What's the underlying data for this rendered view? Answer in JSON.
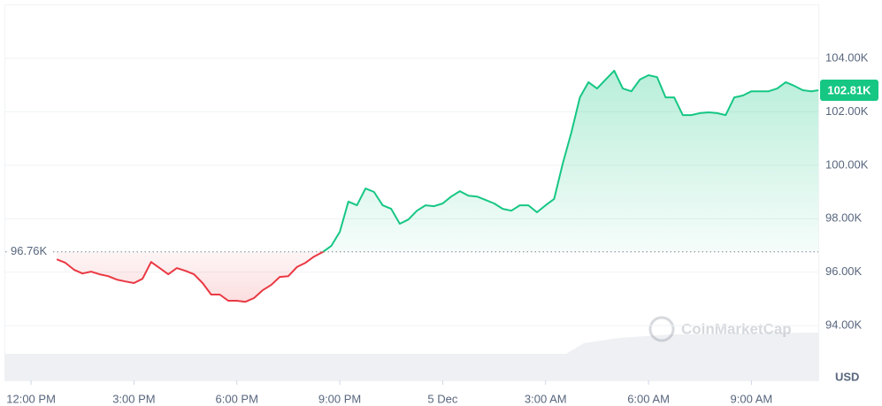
{
  "chart_data": {
    "type": "line",
    "x": [
      0.75,
      1,
      1.25,
      1.5,
      1.75,
      2,
      2.25,
      2.5,
      2.75,
      3,
      3.25,
      3.5,
      3.75,
      4,
      4.25,
      4.5,
      4.75,
      5,
      5.25,
      5.5,
      5.75,
      6,
      6.25,
      6.5,
      6.75,
      7,
      7.25,
      7.5,
      7.75,
      8,
      8.25,
      8.5,
      8.75,
      9,
      9.25,
      9.5,
      9.75,
      10,
      10.25,
      10.5,
      10.75,
      11,
      11.25,
      11.5,
      11.75,
      12,
      12.25,
      12.5,
      12.75,
      13,
      13.25,
      13.5,
      13.75,
      14,
      14.25,
      14.5,
      14.75,
      15,
      15.25,
      15.5,
      15.75,
      16,
      16.25,
      16.5,
      16.75,
      17,
      17.25,
      17.5,
      17.75,
      18,
      18.25,
      18.5,
      18.75,
      19,
      19.25,
      19.5,
      19.75,
      20,
      20.25,
      20.5,
      20.75,
      21,
      21.25,
      21.5,
      21.75,
      22,
      22.25,
      22.5,
      22.75,
      22.95
    ],
    "values": [
      96480,
      96350,
      96090,
      95950,
      96020,
      95920,
      95850,
      95720,
      95650,
      95590,
      95750,
      96380,
      96150,
      95920,
      96150,
      96050,
      95920,
      95590,
      95160,
      95160,
      94930,
      94930,
      94890,
      95030,
      95320,
      95520,
      95820,
      95850,
      96190,
      96350,
      96580,
      96750,
      96980,
      97510,
      98640,
      98500,
      99130,
      99000,
      98500,
      98370,
      97810,
      97970,
      98300,
      98500,
      98470,
      98570,
      98830,
      99030,
      98860,
      98830,
      98700,
      98570,
      98370,
      98300,
      98500,
      98500,
      98240,
      98500,
      98740,
      100060,
      101220,
      102540,
      103110,
      102870,
      103210,
      103540,
      102870,
      102770,
      103210,
      103370,
      103300,
      102540,
      102540,
      101880,
      101880,
      101950,
      101980,
      101950,
      101880,
      102540,
      102610,
      102770,
      102770,
      102770,
      102870,
      103110,
      102970,
      102810,
      102770,
      102810
    ],
    "up_color": "#16c784",
    "down_color": "#ea3943",
    "baseline": {
      "value": 96760,
      "label": "96.76K"
    },
    "last_price": {
      "value": 102810,
      "label": "102.81K"
    },
    "xlim": [
      -0.75,
      22.95
    ],
    "xticks": [
      {
        "value": 0,
        "label": "12:00 PM"
      },
      {
        "value": 3,
        "label": "3:00 PM"
      },
      {
        "value": 6,
        "label": "6:00 PM"
      },
      {
        "value": 9,
        "label": "9:00 PM"
      },
      {
        "value": 12,
        "label": "5 Dec"
      },
      {
        "value": 15,
        "label": "3:00 AM"
      },
      {
        "value": 18,
        "label": "6:00 AM"
      },
      {
        "value": 21,
        "label": "9:00 AM"
      }
    ],
    "ylim": [
      91950,
      106020
    ],
    "yticks": [
      {
        "value": 94000,
        "label": "94.00K"
      },
      {
        "value": 96000,
        "label": "96.00K"
      },
      {
        "value": 98000,
        "label": "98.00K"
      },
      {
        "value": 100000,
        "label": "100.00K"
      },
      {
        "value": 102000,
        "label": "102.00K"
      },
      {
        "value": 104000,
        "label": "104.00K"
      }
    ],
    "y_unit": "USD",
    "watermark": "CoinMarketCap",
    "grid": true
  }
}
